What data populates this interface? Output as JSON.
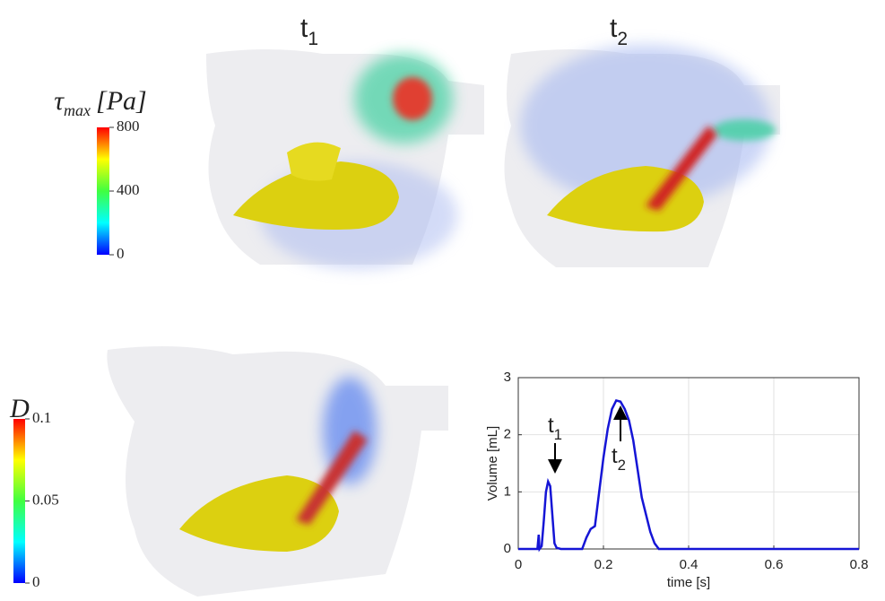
{
  "panels": [
    {
      "symbol": "t",
      "subscript": "1"
    },
    {
      "symbol": "t",
      "subscript": "2"
    }
  ],
  "chart_data": [
    {
      "type": "line",
      "xlabel": "time [s]",
      "ylabel": "Volume [mL]",
      "color": "#1515d6",
      "x": [
        0,
        0.045,
        0.048,
        0.05,
        0.055,
        0.06,
        0.065,
        0.07,
        0.075,
        0.08,
        0.085,
        0.09,
        0.1,
        0.15,
        0.16,
        0.17,
        0.18,
        0.19,
        0.2,
        0.21,
        0.22,
        0.23,
        0.24,
        0.25,
        0.26,
        0.27,
        0.28,
        0.29,
        0.3,
        0.31,
        0.32,
        0.33,
        0.8
      ],
      "values": [
        0,
        0,
        0.25,
        0,
        0.05,
        0.5,
        1.0,
        1.18,
        1.1,
        0.6,
        0.1,
        0.02,
        0,
        0,
        0.2,
        0.35,
        0.4,
        1.0,
        1.6,
        2.1,
        2.45,
        2.6,
        2.58,
        2.45,
        2.25,
        1.9,
        1.4,
        0.9,
        0.6,
        0.3,
        0.1,
        0,
        0
      ],
      "xlim": [
        0,
        0.8
      ],
      "xticks": [
        0,
        0.2,
        0.4,
        0.6,
        0.8
      ],
      "ylim": [
        0,
        3
      ],
      "yticks": [
        0,
        1,
        2,
        3
      ],
      "grid": true,
      "annotations": [
        {
          "symbol": "t",
          "subscript": "1"
        },
        {
          "symbol": "t",
          "subscript": "2"
        }
      ]
    },
    {
      "type": "colorbar",
      "title_symbol": "τ",
      "title_subscript": "max",
      "title_unit": "[Pa]",
      "ylim": [
        0,
        800
      ],
      "yticks": [
        0,
        400,
        800
      ],
      "colors": [
        "#0000ff",
        "#00ffff",
        "#40ff40",
        "#ffff00",
        "#ff0000"
      ]
    },
    {
      "type": "colorbar",
      "title_symbol": "D",
      "ylim": [
        0,
        0.1
      ],
      "yticks": [
        0,
        0.05,
        0.1
      ],
      "colors": [
        "#0000ff",
        "#00ffff",
        "#40ff40",
        "#ffff00",
        "#ff0000"
      ]
    }
  ]
}
